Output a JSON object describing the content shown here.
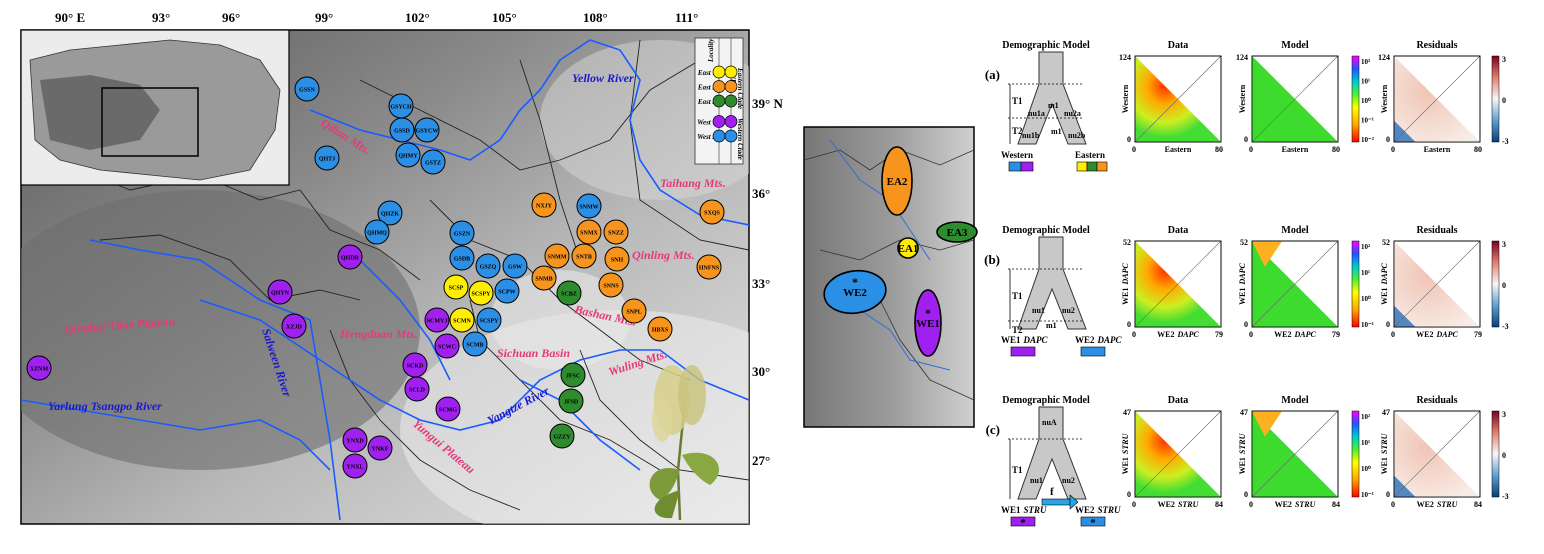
{
  "map": {
    "lon_ticks": [
      "90° E",
      "93°",
      "96°",
      "99°",
      "102°",
      "105°",
      "108°",
      "111°"
    ],
    "lat_ticks": [
      "39° N",
      "36°",
      "33°",
      "30°",
      "27°"
    ],
    "mountains": [
      {
        "id": "qilian",
        "label": "Qilian Mts."
      },
      {
        "id": "taihang",
        "label": "Taihang Mts."
      },
      {
        "id": "qinling",
        "label": "Qinling Mts."
      },
      {
        "id": "bashan",
        "label": "Bashan Mts."
      },
      {
        "id": "hengduan",
        "label": "Hengduan Mts."
      },
      {
        "id": "qtp",
        "label": "Qinghai-Tibet Plateau"
      },
      {
        "id": "wuling",
        "label": "Wuling Mts."
      },
      {
        "id": "yungui",
        "label": "Yungui Plateau"
      }
    ],
    "rivers": [
      {
        "id": "yellow",
        "label": "Yellow River"
      },
      {
        "id": "salween",
        "label": "Salween River"
      },
      {
        "id": "yarlung",
        "label": "Yarlung Tsangpo River"
      },
      {
        "id": "yangtze",
        "label": "Yangtze River"
      }
    ],
    "basin": "Sichuan Basin",
    "legend": {
      "header_left": "Locality",
      "header_right": "SNPS",
      "clade_east": "Eastern Clade",
      "clade_west": "Western Clade",
      "rows": [
        "East 1",
        "East 2",
        "East 3",
        "West 1",
        "West 2"
      ]
    },
    "colors": {
      "East 1": "#ffee00",
      "East 2": "#f7941d",
      "East 3": "#2e8b2e",
      "West 1": "#a020f0",
      "West 2": "#2b8fe6"
    },
    "sites": [
      {
        "code": "GSSN",
        "group": "West 2"
      },
      {
        "code": "GSYCH",
        "group": "West 2"
      },
      {
        "code": "GSSD",
        "group": "West 2"
      },
      {
        "code": "GSYCW",
        "group": "West 2"
      },
      {
        "code": "QHMY",
        "group": "West 2"
      },
      {
        "code": "GSTZ",
        "group": "West 2"
      },
      {
        "code": "QHTJ",
        "group": "West 2"
      },
      {
        "code": "QHZK",
        "group": "West 2"
      },
      {
        "code": "QHMQ",
        "group": "West 2"
      },
      {
        "code": "GSZN",
        "group": "West 2"
      },
      {
        "code": "GSDB",
        "group": "West 2"
      },
      {
        "code": "GSZQ",
        "group": "West 2"
      },
      {
        "code": "GSW",
        "group": "West 2"
      },
      {
        "code": "SCPW",
        "group": "West 2"
      },
      {
        "code": "SCSPY",
        "group": "West 2"
      },
      {
        "code": "SCMB",
        "group": "West 2"
      },
      {
        "code": "SNMW",
        "group": "West 2"
      },
      {
        "code": "QHDR",
        "group": "West 1"
      },
      {
        "code": "QHYN",
        "group": "West 1"
      },
      {
        "code": "XZJD",
        "group": "West 1"
      },
      {
        "code": "XZNM",
        "group": "West 1"
      },
      {
        "code": "SCMYJ",
        "group": "West 1"
      },
      {
        "code": "SCWC",
        "group": "West 1"
      },
      {
        "code": "SCKD",
        "group": "West 1"
      },
      {
        "code": "SCLD",
        "group": "West 1"
      },
      {
        "code": "SCMG",
        "group": "West 1"
      },
      {
        "code": "YNXD",
        "group": "West 1"
      },
      {
        "code": "YNKF",
        "group": "West 1"
      },
      {
        "code": "YNXL",
        "group": "West 1"
      },
      {
        "code": "SCSP",
        "group": "East 1"
      },
      {
        "code": "SCSPY",
        "group": "East 1"
      },
      {
        "code": "SCMN",
        "group": "East 1"
      },
      {
        "code": "NXJY",
        "group": "East 2"
      },
      {
        "code": "SNMX",
        "group": "East 2"
      },
      {
        "code": "SNZZ",
        "group": "East 2"
      },
      {
        "code": "SNMM",
        "group": "East 2"
      },
      {
        "code": "SNTB",
        "group": "East 2"
      },
      {
        "code": "SNH",
        "group": "East 2"
      },
      {
        "code": "SNMB",
        "group": "East 2"
      },
      {
        "code": "SNNS",
        "group": "East 2"
      },
      {
        "code": "SNPL",
        "group": "East 2"
      },
      {
        "code": "HBXS",
        "group": "East 2"
      },
      {
        "code": "SXQS",
        "group": "East 2"
      },
      {
        "code": "HNFNS",
        "group": "East 2"
      },
      {
        "code": "SCBZ",
        "group": "East 3"
      },
      {
        "code": "JFSC",
        "group": "East 3"
      },
      {
        "code": "JFSD",
        "group": "East 3"
      },
      {
        "code": "GZZY",
        "group": "East 3"
      }
    ]
  },
  "middle_map": {
    "groups": [
      {
        "label": "EA2",
        "color": "#f7941d"
      },
      {
        "label": "EA3",
        "color": "#2e8b2e"
      },
      {
        "label": "EA1",
        "color": "#ffee00"
      },
      {
        "label": "WE2",
        "color": "#2b8fe6",
        "star": "*"
      },
      {
        "label": "WE1",
        "color": "#a020f0",
        "star": "*"
      }
    ]
  },
  "panels": {
    "col_titles": {
      "model": "Demographic Model",
      "data": "Data",
      "modelfit": "Model",
      "resid": "Residuals"
    },
    "rows": [
      {
        "letter": "(a)",
        "params": [
          "nu1a",
          "m1",
          "nu2a",
          "nu1b",
          "m1",
          "nu2b",
          "T1",
          "T2"
        ],
        "left_label": "Western",
        "right_label": "Eastern",
        "ylabel": "Western",
        "xlabel": "Eastern",
        "xmax": "80",
        "ymax": "124",
        "zero": "0",
        "cbar": [
          "10³",
          "10¹",
          "10⁰",
          "10⁻¹",
          "10⁻²"
        ],
        "resid_ticks": [
          "3",
          "0",
          "-3"
        ]
      },
      {
        "letter": "(b)",
        "params": [
          "nu1",
          "m1",
          "nu2",
          "T1",
          "T2"
        ],
        "left_label": "WE1",
        "left_sub": "DAPC",
        "right_label": "WE2",
        "right_sub": "DAPC",
        "ylabel": "WE1",
        "ylabel_sub": "DAPC",
        "xlabel": "WE2",
        "xlabel_sub": "DAPC",
        "xmax": "79",
        "ymax": "52",
        "zero": "0",
        "cbar": [
          "10²",
          "10¹",
          "10⁰",
          "10⁻¹"
        ],
        "resid_ticks": [
          "3",
          "0",
          "-3"
        ]
      },
      {
        "letter": "(c)",
        "params": [
          "nuA",
          "nu1",
          "nu2",
          "T1",
          "f"
        ],
        "left_label": "WE1",
        "left_sub": "STRU",
        "right_label": "WE2",
        "right_sub": "STRU",
        "ylabel": "WE1",
        "ylabel_sub": "STRU",
        "xlabel": "WE2",
        "xlabel_sub": "STRU",
        "xmax": "84",
        "ymax": "47",
        "zero": "0",
        "cbar": [
          "10²",
          "10¹",
          "10⁰",
          "10⁻¹"
        ],
        "resid_ticks": [
          "3",
          "0",
          "-3"
        ]
      }
    ]
  }
}
